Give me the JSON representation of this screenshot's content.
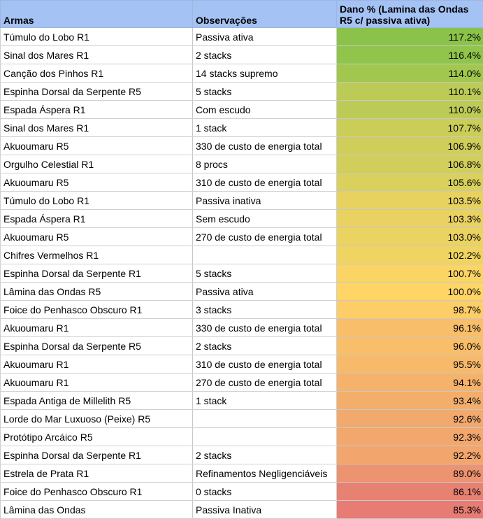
{
  "table": {
    "headers": {
      "weapon": "Armas",
      "notes": "Observações",
      "damage": "Dano % (Lamina das Ondas R5 c/ passiva ativa)"
    },
    "header_color": "#a4c2f4",
    "rows": [
      {
        "weapon": "Túmulo do Lobo R1",
        "notes": "Passiva ativa",
        "damage": "117.2%",
        "value": 117.2
      },
      {
        "weapon": "Sinal dos Mares R1",
        "notes": "2 stacks",
        "damage": "116.4%",
        "value": 116.4
      },
      {
        "weapon": "Canção dos Pinhos R1",
        "notes": "14 stacks supremo",
        "damage": "114.0%",
        "value": 114.0
      },
      {
        "weapon": "Espinha Dorsal da Serpente R5",
        "notes": "5 stacks",
        "damage": "110.1%",
        "value": 110.1
      },
      {
        "weapon": "Espada Áspera R1",
        "notes": "Com escudo",
        "damage": "110.0%",
        "value": 110.0
      },
      {
        "weapon": "Sinal dos Mares R1",
        "notes": "1 stack",
        "damage": "107.7%",
        "value": 107.7
      },
      {
        "weapon": "Akuoumaru R5",
        "notes": "330 de custo de energia total",
        "damage": "106.9%",
        "value": 106.9
      },
      {
        "weapon": "Orgulho Celestial R1",
        "notes": "8 procs",
        "damage": "106.8%",
        "value": 106.8
      },
      {
        "weapon": "Akuoumaru R5",
        "notes": "310 de custo de energia total",
        "damage": "105.6%",
        "value": 105.6
      },
      {
        "weapon": "Túmulo do Lobo R1",
        "notes": "Passiva inativa",
        "damage": "103.5%",
        "value": 103.5
      },
      {
        "weapon": "Espada Áspera R1",
        "notes": "Sem escudo",
        "damage": "103.3%",
        "value": 103.3
      },
      {
        "weapon": "Akuoumaru R5",
        "notes": "270 de custo de energia total",
        "damage": "103.0%",
        "value": 103.0
      },
      {
        "weapon": "Chifres Vermelhos R1",
        "notes": "",
        "damage": "102.2%",
        "value": 102.2
      },
      {
        "weapon": "Espinha Dorsal da Serpente R1",
        "notes": "5 stacks",
        "damage": "100.7%",
        "value": 100.7
      },
      {
        "weapon": "Lâmina das Ondas R5",
        "notes": "Passiva ativa",
        "damage": "100.0%",
        "value": 100.0
      },
      {
        "weapon": "Foice do Penhasco Obscuro R1",
        "notes": "3 stacks",
        "damage": "98.7%",
        "value": 98.7
      },
      {
        "weapon": "Akuoumaru R1",
        "notes": "330 de custo de energia total",
        "damage": "96.1%",
        "value": 96.1
      },
      {
        "weapon": "Espinha Dorsal da Serpente R5",
        "notes": "2 stacks",
        "damage": "96.0%",
        "value": 96.0
      },
      {
        "weapon": "Akuoumaru R1",
        "notes": "310 de custo de energia total",
        "damage": "95.5%",
        "value": 95.5
      },
      {
        "weapon": "Akuoumaru R1",
        "notes": "270 de custo de energia total",
        "damage": "94.1%",
        "value": 94.1
      },
      {
        "weapon": "Espada Antiga de Millelith R5",
        "notes": "1 stack",
        "damage": "93.4%",
        "value": 93.4
      },
      {
        "weapon": "Lorde do Mar Luxuoso (Peixe) R5",
        "notes": "",
        "damage": "92.6%",
        "value": 92.6
      },
      {
        "weapon": "Protótipo Arcáico R5",
        "notes": "",
        "damage": "92.3%",
        "value": 92.3
      },
      {
        "weapon": "Espinha Dorsal da Serpente R1",
        "notes": "2 stacks",
        "damage": "92.2%",
        "value": 92.2
      },
      {
        "weapon": "Estrela de Prata R1",
        "notes": "Refinamentos Negligenciáveis",
        "damage": "89.0%",
        "value": 89.0
      },
      {
        "weapon": "Foice do Penhasco Obscuro R1",
        "notes": "0 stacks",
        "damage": "86.1%",
        "value": 86.1
      },
      {
        "weapon": "Lâmina das Ondas",
        "notes": "Passiva Inativa",
        "damage": "85.3%",
        "value": 85.3
      }
    ],
    "color_scale": {
      "min_value": 85.3,
      "mid_value": 100.0,
      "max_value": 117.2,
      "min_color": "#e67c73",
      "mid_color": "#ffd666",
      "max_color": "#8bc34a"
    }
  }
}
